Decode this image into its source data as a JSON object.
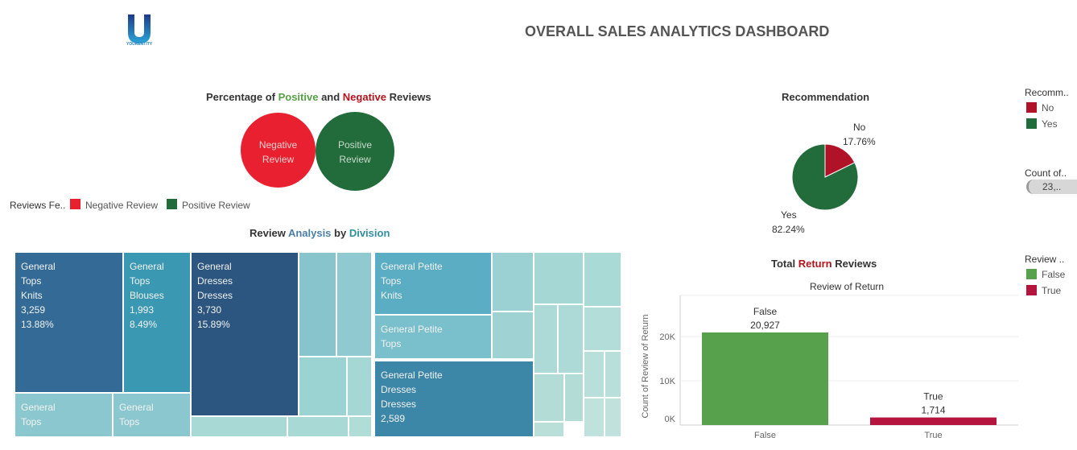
{
  "header": {
    "logo_letter": "U",
    "logo_text": "YOURENTITY",
    "title": "OVERALL SALES ANALYTICS DASHBOARD"
  },
  "colors": {
    "negative": "#e8202f",
    "positive": "#226b3b",
    "no": "#b01228",
    "yes": "#226b3b",
    "return_false": "#57a14c",
    "return_true": "#b5143e",
    "positive_text": "#56a046",
    "negative_text": "#b3141c",
    "analysis_text": "#4a7fa8",
    "division_text": "#2f8fa0",
    "return_text": "#b3141c"
  },
  "reviews_section": {
    "title_prefix": "Percentage of ",
    "title_positive": "Positive",
    "title_and": " and ",
    "title_negative": "Negative",
    "title_suffix": " Reviews",
    "circle_negative_line1": "Negative",
    "circle_negative_line2": "Review",
    "circle_positive_line1": "Positive",
    "circle_positive_line2": "Review",
    "legend_title": "Reviews Fe..",
    "legend_negative": "Negative Review",
    "legend_positive": "Positive Review"
  },
  "treemap_section": {
    "title_prefix": "Review ",
    "title_analysis": "Analysis",
    "title_by": " by ",
    "title_division": "Division",
    "cells": [
      {
        "lines": "General\nTops\nKnits\n3,259\n13.88%"
      },
      {
        "lines": "General\nTops\nBlouses\n1,993\n8.49%"
      },
      {
        "lines": "General\nDresses\nDresses\n3,730\n15.89%"
      },
      {
        "lines": "General\nTops"
      },
      {
        "lines": "General\nTops"
      },
      {
        "lines": "General Petite\nTops\nKnits"
      },
      {
        "lines": "General Petite\nTops"
      },
      {
        "lines": "General Petite\nDresses\nDresses\n2,589"
      }
    ]
  },
  "recommendation_section": {
    "title": "Recommendation",
    "label_no": "No",
    "pct_no": "17.76%",
    "label_yes": "Yes",
    "pct_yes": "82.24%",
    "legend_title": "Recomm..",
    "legend_no": "No",
    "legend_yes": "Yes",
    "count_title": "Count of..",
    "count_value": "23,.."
  },
  "return_section": {
    "title_prefix": "Total ",
    "title_return": "Return",
    "title_suffix": " Reviews",
    "legend_title": "Review ..",
    "legend_false": "False",
    "legend_true": "True"
  },
  "chart_data": [
    {
      "type": "pie",
      "title": "Recommendation",
      "categories": [
        "No",
        "Yes"
      ],
      "values": [
        17.76,
        82.24
      ],
      "value_labels": [
        "17.76%",
        "82.24%"
      ],
      "colors": [
        "#b01228",
        "#226b3b"
      ],
      "legend_placement": "right"
    },
    {
      "type": "bar",
      "title": "Total Return Reviews",
      "subtitle": "Review of Return",
      "categories": [
        "False",
        "True"
      ],
      "values": [
        20927,
        1714
      ],
      "value_labels": [
        "20,927",
        "1,714"
      ],
      "colors": [
        "#57a14c",
        "#b5143e"
      ],
      "ylabel": "Count of Review of Return",
      "yticks": [
        0,
        10000,
        20000
      ],
      "ytick_labels": [
        "0K",
        "10K",
        "20K"
      ],
      "ylim": [
        0,
        23000
      ],
      "grid": true,
      "legend_placement": "right"
    },
    {
      "type": "heatmap",
      "title": "Review Analysis by Division",
      "labeled_cells": [
        {
          "division": "General",
          "department": "Tops",
          "class": "Knits",
          "count": 3259,
          "percent": 13.88
        },
        {
          "division": "General",
          "department": "Tops",
          "class": "Blouses",
          "count": 1993,
          "percent": 8.49
        },
        {
          "division": "General",
          "department": "Dresses",
          "class": "Dresses",
          "count": 3730,
          "percent": 15.89
        },
        {
          "division": "General Petite",
          "department": "Dresses",
          "class": "Dresses",
          "count": 2589
        }
      ]
    }
  ]
}
